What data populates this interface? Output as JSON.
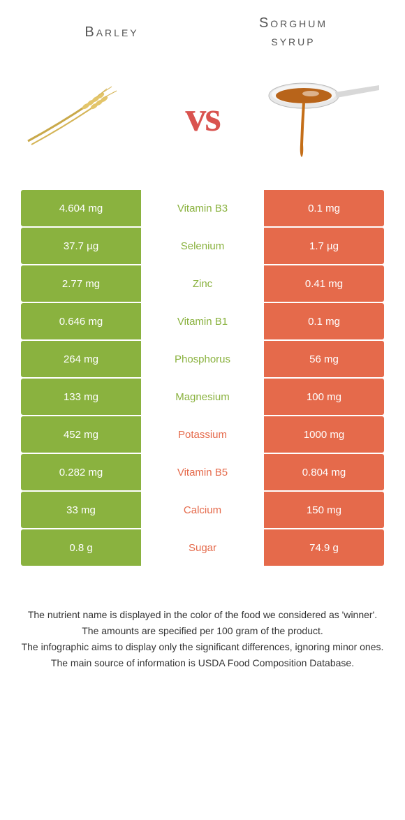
{
  "colors": {
    "left": "#8ab23f",
    "right": "#e56a4b",
    "mid_green": "#8ab23f",
    "mid_orange": "#e56a4b",
    "heading": "#555555"
  },
  "header": {
    "left_title": "Barley",
    "right_title": "Sorghum\nsyrup",
    "vs": "vs"
  },
  "rows": [
    {
      "left": "4.604 mg",
      "label": "Vitamin B3",
      "right": "0.1 mg",
      "winner": "left"
    },
    {
      "left": "37.7 µg",
      "label": "Selenium",
      "right": "1.7 µg",
      "winner": "left"
    },
    {
      "left": "2.77 mg",
      "label": "Zinc",
      "right": "0.41 mg",
      "winner": "left"
    },
    {
      "left": "0.646 mg",
      "label": "Vitamin B1",
      "right": "0.1 mg",
      "winner": "left"
    },
    {
      "left": "264 mg",
      "label": "Phosphorus",
      "right": "56 mg",
      "winner": "left"
    },
    {
      "left": "133 mg",
      "label": "Magnesium",
      "right": "100 mg",
      "winner": "left"
    },
    {
      "left": "452 mg",
      "label": "Potassium",
      "right": "1000 mg",
      "winner": "right"
    },
    {
      "left": "0.282 mg",
      "label": "Vitamin B5",
      "right": "0.804 mg",
      "winner": "right"
    },
    {
      "left": "33 mg",
      "label": "Calcium",
      "right": "150 mg",
      "winner": "right"
    },
    {
      "left": "0.8 g",
      "label": "Sugar",
      "right": "74.9 g",
      "winner": "right"
    }
  ],
  "footer": {
    "line1": "The nutrient name is displayed in the color of the food we considered as 'winner'.",
    "line2": "The amounts are specified per 100 gram of the product.",
    "line3": "The infographic aims to display only the significant differences, ignoring minor ones.",
    "line4": "The main source of information is USDA Food Composition Database."
  }
}
